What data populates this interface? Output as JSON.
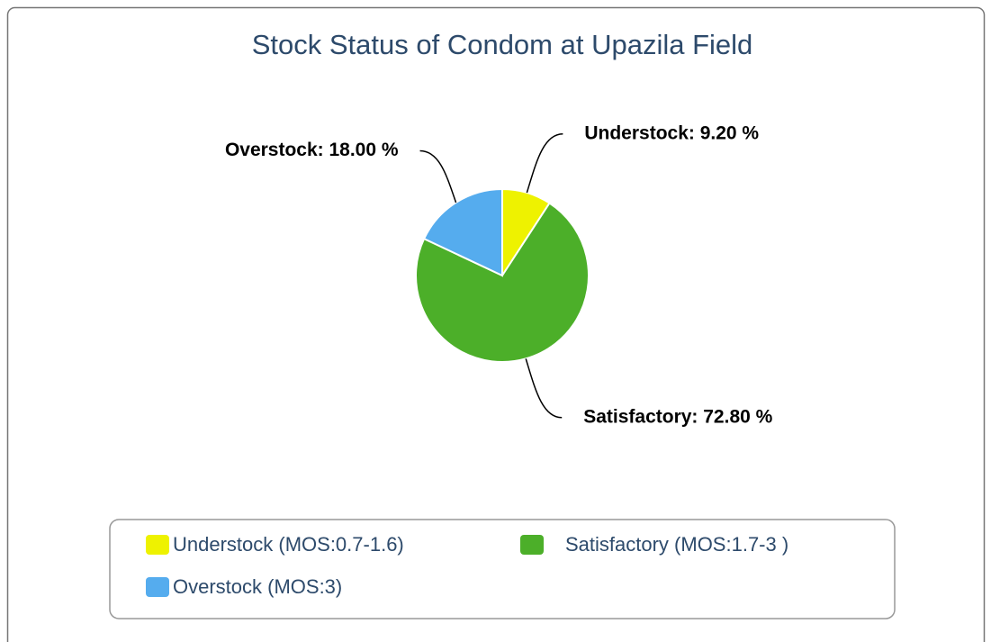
{
  "chart_data": {
    "type": "pie",
    "title": "Stock Status of Condom at Upazila Field",
    "categories": [
      "Understock (MOS:0.7-1.6)",
      "Satisfactory (MOS:1.7-3 )",
      "Overstock (MOS:3)"
    ],
    "values": [
      9.2,
      72.8,
      18.0
    ],
    "value_labels": [
      "Understock: 9.20 %",
      "Satisfactory: 72.80 %",
      "Overstock: 18.00 %"
    ],
    "colors": [
      "#eef200",
      "#4caf29",
      "#55acee"
    ]
  }
}
